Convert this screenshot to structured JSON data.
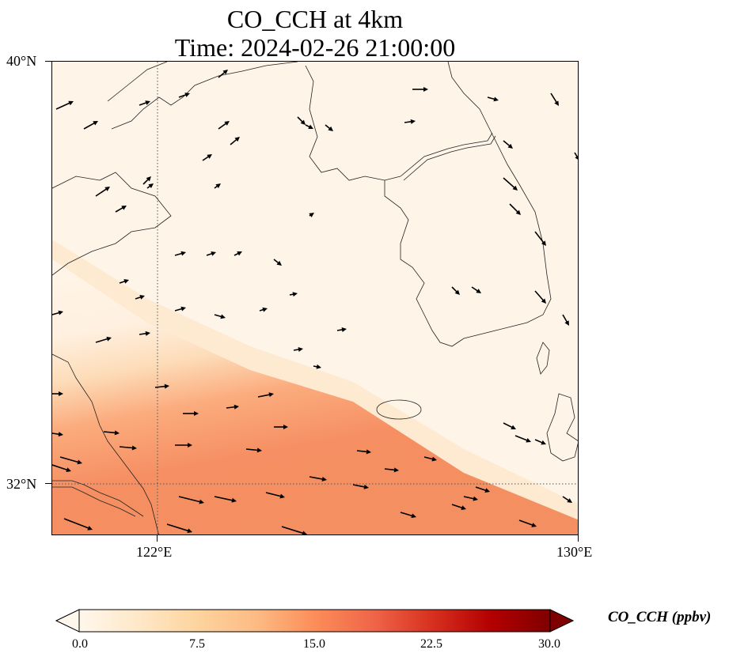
{
  "title": {
    "line1": "CO_CCH at 4km",
    "line2": "Time: 2024-02-26 21:00:00"
  },
  "axes": {
    "lat_labels": [
      "40°N",
      "32°N"
    ],
    "lon_labels": [
      "122°E",
      "130°E"
    ]
  },
  "colorbar": {
    "label": "CO_CCH (ppbv)",
    "ticks": [
      "0.0",
      "7.5",
      "15.0",
      "22.5",
      "30.0"
    ],
    "min": 0,
    "max": 30,
    "extend": "both",
    "colormap": "OrRd",
    "colors": [
      "#fff7ec",
      "#fee8c8",
      "#fdd49e",
      "#fdbb84",
      "#fc8d59",
      "#ef6548",
      "#d7301f",
      "#b30000",
      "#7f0000"
    ]
  },
  "map": {
    "lon_range": [
      120,
      130
    ],
    "lat_range": [
      31,
      40
    ],
    "gridlines": "dotted",
    "features": [
      "coastlines",
      "wind-vectors"
    ]
  },
  "field": {
    "description_values": {
      "background_ppbv": 2,
      "southwest_plume_max_ppbv": 14
    }
  }
}
